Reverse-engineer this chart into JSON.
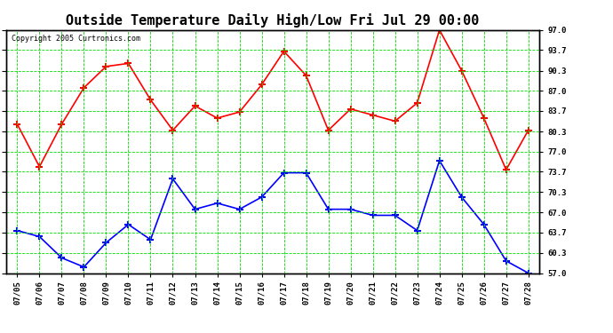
{
  "title": "Outside Temperature Daily High/Low Fri Jul 29 00:00",
  "copyright": "Copyright 2005 Curtronics.com",
  "dates": [
    "07/05",
    "07/06",
    "07/07",
    "07/08",
    "07/09",
    "07/10",
    "07/11",
    "07/12",
    "07/13",
    "07/14",
    "07/15",
    "07/16",
    "07/17",
    "07/18",
    "07/19",
    "07/20",
    "07/21",
    "07/22",
    "07/23",
    "07/24",
    "07/25",
    "07/26",
    "07/27",
    "07/28"
  ],
  "high_temps": [
    81.5,
    74.5,
    81.5,
    87.5,
    91.0,
    91.5,
    85.5,
    80.5,
    84.5,
    82.5,
    83.5,
    88.0,
    93.5,
    89.5,
    80.5,
    84.0,
    83.0,
    82.0,
    85.0,
    97.0,
    90.3,
    82.5,
    74.0,
    80.5
  ],
  "low_temps": [
    64.0,
    63.0,
    59.5,
    58.0,
    62.0,
    65.0,
    62.5,
    72.5,
    67.5,
    68.5,
    67.5,
    69.5,
    73.5,
    73.5,
    67.5,
    67.5,
    66.5,
    66.5,
    64.0,
    75.5,
    69.5,
    65.0,
    59.0,
    57.0
  ],
  "high_color": "#ff0000",
  "low_color": "#0000ff",
  "grid_color": "#00dd00",
  "bg_color": "#ffffff",
  "plot_bg_color": "#ffffff",
  "border_color": "#000000",
  "ylim": [
    57.0,
    97.0
  ],
  "yticks": [
    57.0,
    60.3,
    63.7,
    67.0,
    70.3,
    73.7,
    77.0,
    80.3,
    83.7,
    87.0,
    90.3,
    93.7,
    97.0
  ],
  "title_fontsize": 11,
  "marker": "+",
  "marker_size": 6,
  "linewidth": 1.2
}
